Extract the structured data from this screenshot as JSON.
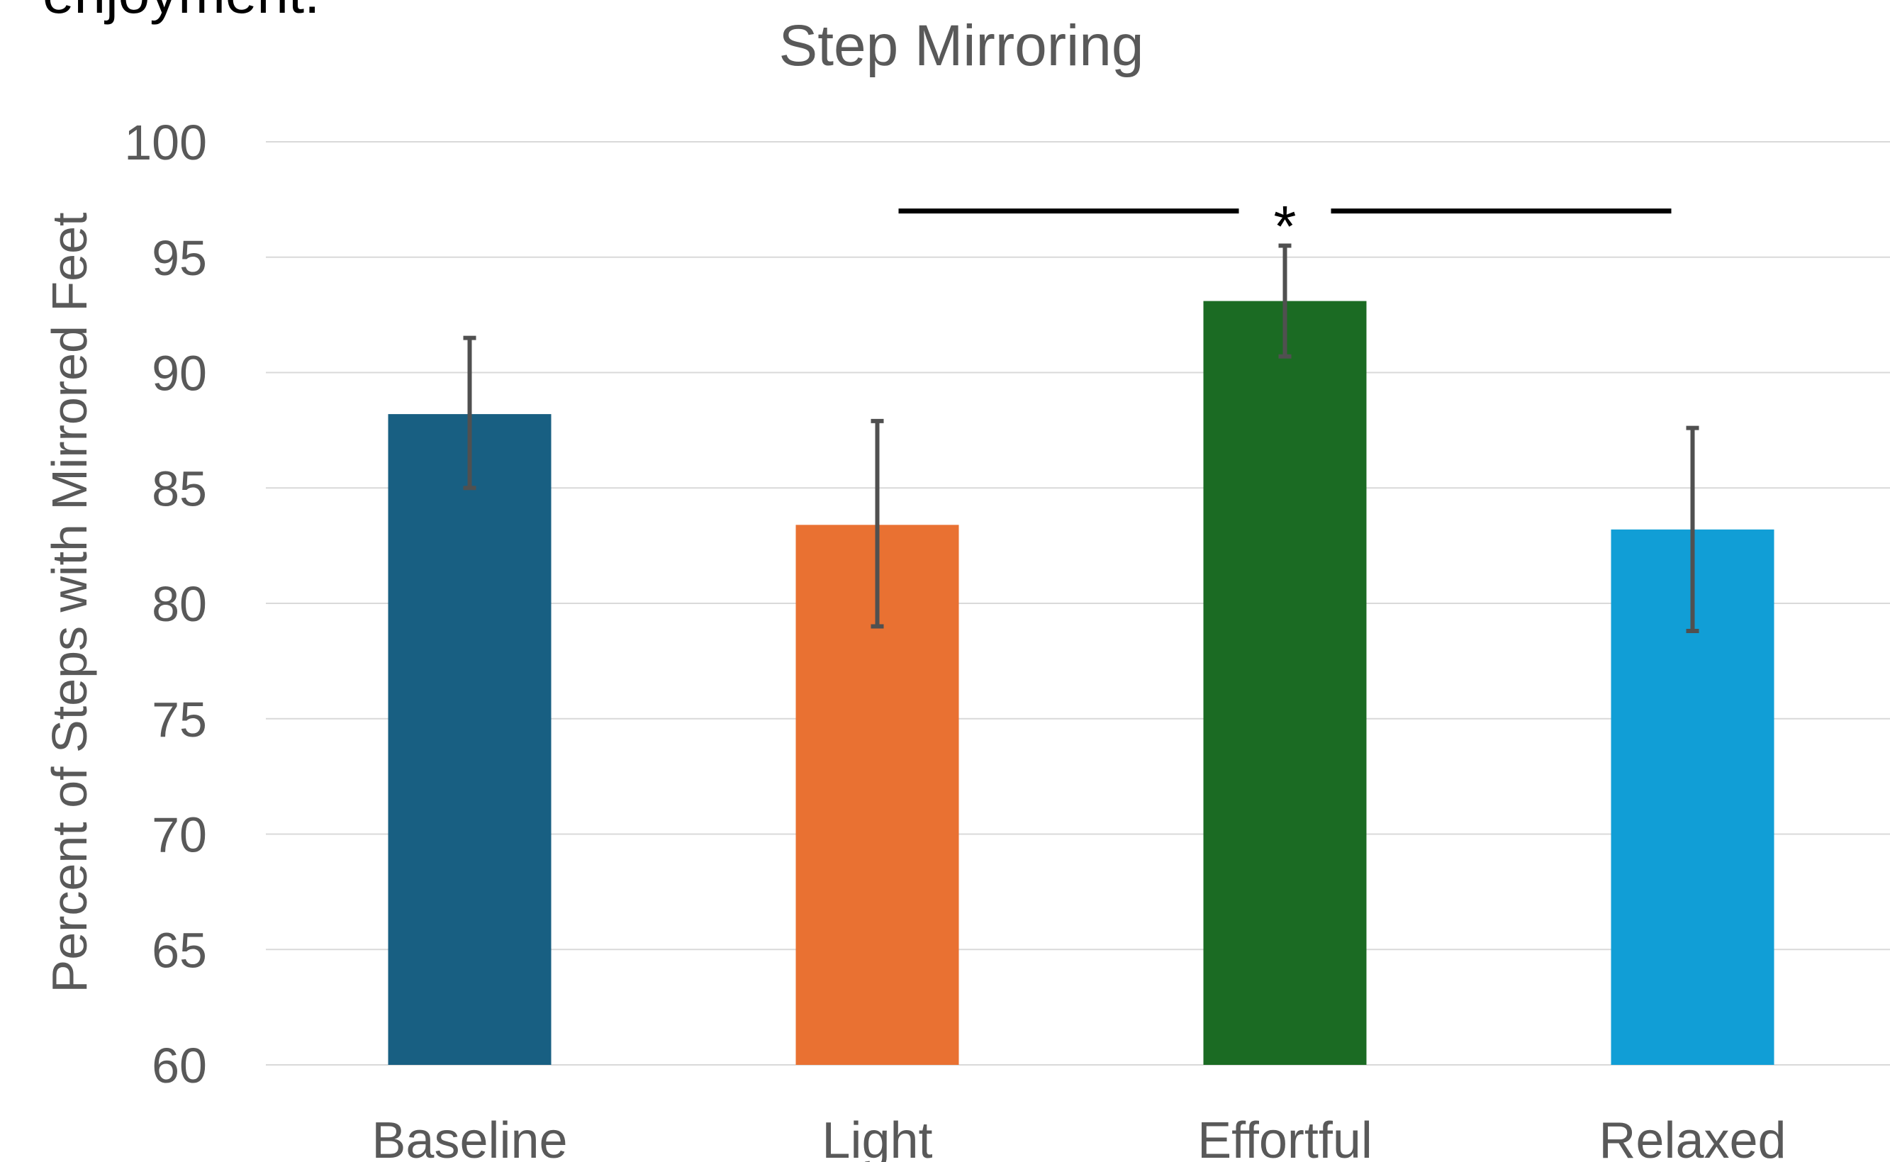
{
  "header_fragment": "enjoyment.",
  "chart_data": {
    "type": "bar",
    "title": "Step Mirroring",
    "ylabel": "Percent of Steps with Mirrored Feet",
    "xlabel": "",
    "ylim": [
      60,
      100
    ],
    "y_tick_step": 5,
    "y_ticks": [
      "60",
      "65",
      "70",
      "75",
      "80",
      "85",
      "90",
      "95",
      "100"
    ],
    "grid": true,
    "categories": [
      "Baseline",
      "Light",
      "Effortful",
      "Relaxed"
    ],
    "values": [
      88.2,
      83.4,
      93.1,
      83.2
    ],
    "error_low": [
      85.0,
      79.0,
      90.7,
      78.8
    ],
    "error_high": [
      91.5,
      87.9,
      95.5,
      87.6
    ],
    "colors": [
      "#185f82",
      "#e97132",
      "#1b6b23",
      "#119ed6"
    ],
    "significance": {
      "from": 1,
      "to": 3,
      "y": 97.0,
      "label": "*"
    },
    "colors_misc": {
      "axis_text": "#595959",
      "gridline": "#d9d9d9",
      "error_bar": "#505050",
      "bracket": "#000000"
    }
  }
}
